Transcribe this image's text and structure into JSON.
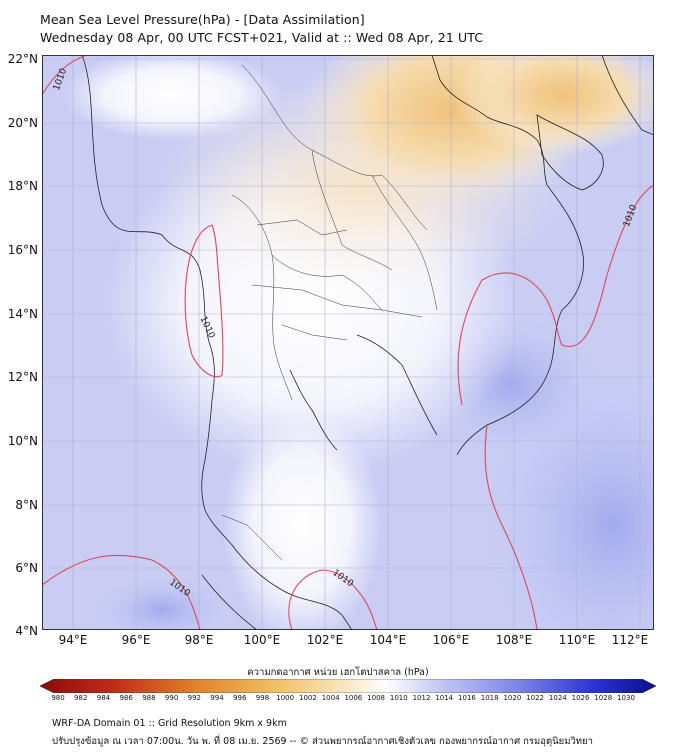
{
  "title": {
    "line1": "Mean Sea Level Pressure(hPa) - [Data Assimilation]",
    "line2": "Wednesday 08 Apr, 00 UTC FCST+021, Valid at :: Wed 08 Apr, 21 UTC"
  },
  "map": {
    "lat_labels": [
      "22°N",
      "20°N",
      "18°N",
      "16°N",
      "14°N",
      "12°N",
      "10°N",
      "8°N",
      "6°N",
      "4°N"
    ],
    "lon_labels": [
      "94°E",
      "96°E",
      "98°E",
      "100°E",
      "102°E",
      "104°E",
      "106°E",
      "108°E",
      "110°E",
      "112°E"
    ],
    "isobar_labels": [
      "1010",
      "1010",
      "1010",
      "1010",
      "1010"
    ],
    "colors": {
      "ocean_low": "#c8ccf3",
      "ocean_deep": "#a9b0ee",
      "land_high": "#f0c27a",
      "isobar": "#e0455a",
      "border": "#222222"
    }
  },
  "colorbar": {
    "title": "ความกดอากาศ หน่วย เฮกโตปาสคาล (hPa)",
    "ticks": [
      "980",
      "982",
      "984",
      "986",
      "988",
      "990",
      "992",
      "994",
      "996",
      "998",
      "1000",
      "1002",
      "1004",
      "1006",
      "1008",
      "1010",
      "1012",
      "1014",
      "1016",
      "1018",
      "1020",
      "1022",
      "1024",
      "1026",
      "1028",
      "1030"
    ]
  },
  "footer": {
    "line1": "WRF-DA Domain 01 :: Grid Resolution 9km x 9km",
    "line2": "ปรับปรุงข้อมูล ณ เวลา 07:00น. วัน พ. ที่ 08 เม.ย. 2569 -- © ส่วนพยากรณ์อากาศเชิงตัวเลข กองพยากรณ์อากาศ กรมอุตุนิยมวิทยา"
  }
}
